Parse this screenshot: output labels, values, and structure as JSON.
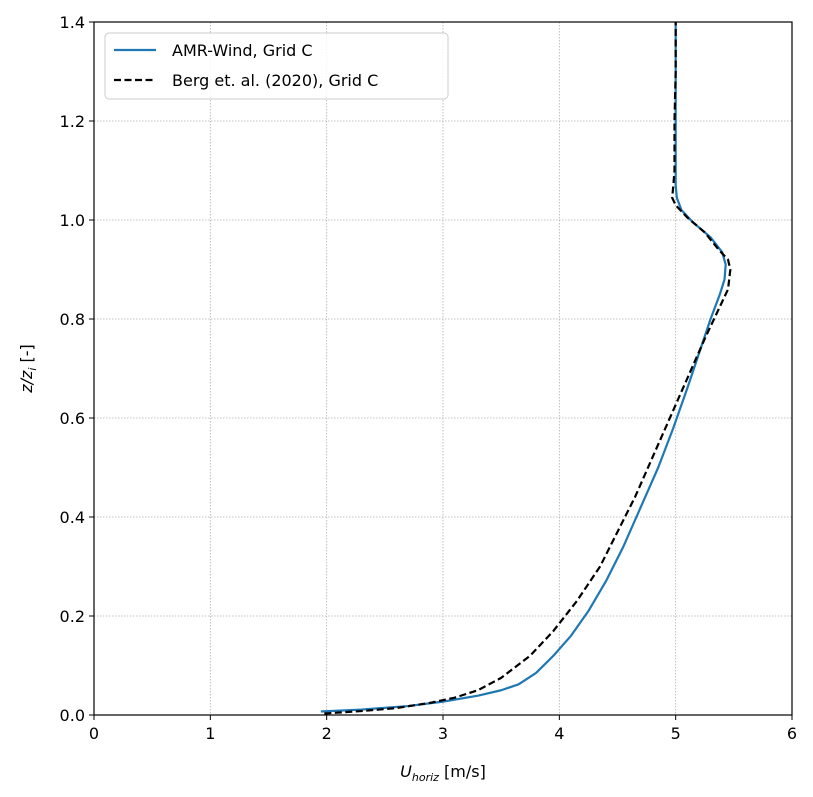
{
  "chart_data": {
    "type": "line",
    "xlabel": {
      "main": "U",
      "sub": "horiz",
      "unit": " [m/s]"
    },
    "ylabel": {
      "main": "z/z",
      "sub": "i",
      "unit": " [-]"
    },
    "xlim": [
      0,
      6
    ],
    "ylim": [
      0,
      1.4
    ],
    "xticks": [
      "0",
      "1",
      "2",
      "3",
      "4",
      "5",
      "6"
    ],
    "yticks": [
      "0.0",
      "0.2",
      "0.4",
      "0.6",
      "0.8",
      "1.0",
      "1.2",
      "1.4"
    ],
    "grid": true,
    "legend_position": "top-left",
    "series": [
      {
        "name": "AMR-Wind, Grid C",
        "color": "#1f77b4",
        "dash": "solid",
        "points": [
          [
            1.95,
            0.007
          ],
          [
            2.3,
            0.011
          ],
          [
            2.7,
            0.018
          ],
          [
            3.0,
            0.027
          ],
          [
            3.3,
            0.039
          ],
          [
            3.5,
            0.05
          ],
          [
            3.65,
            0.062
          ],
          [
            3.8,
            0.085
          ],
          [
            3.95,
            0.12
          ],
          [
            4.1,
            0.16
          ],
          [
            4.25,
            0.21
          ],
          [
            4.4,
            0.27
          ],
          [
            4.55,
            0.34
          ],
          [
            4.7,
            0.42
          ],
          [
            4.85,
            0.5
          ],
          [
            4.98,
            0.58
          ],
          [
            5.1,
            0.66
          ],
          [
            5.2,
            0.73
          ],
          [
            5.3,
            0.8
          ],
          [
            5.38,
            0.85
          ],
          [
            5.42,
            0.88
          ],
          [
            5.43,
            0.91
          ],
          [
            5.4,
            0.935
          ],
          [
            5.3,
            0.965
          ],
          [
            5.15,
            0.995
          ],
          [
            5.05,
            1.02
          ],
          [
            5.01,
            1.045
          ],
          [
            5.0,
            1.07
          ],
          [
            5.0,
            1.1
          ],
          [
            5.0,
            1.2
          ],
          [
            5.0,
            1.3
          ],
          [
            5.0,
            1.4
          ]
        ]
      },
      {
        "name": "Berg et. al. (2020), Grid C",
        "color": "#000000",
        "dash": "dashed",
        "points": [
          [
            1.98,
            0.003
          ],
          [
            2.3,
            0.008
          ],
          [
            2.6,
            0.014
          ],
          [
            2.9,
            0.025
          ],
          [
            3.1,
            0.035
          ],
          [
            3.3,
            0.05
          ],
          [
            3.5,
            0.075
          ],
          [
            3.75,
            0.12
          ],
          [
            3.95,
            0.17
          ],
          [
            4.15,
            0.23
          ],
          [
            4.35,
            0.3
          ],
          [
            4.5,
            0.37
          ],
          [
            4.65,
            0.44
          ],
          [
            4.8,
            0.52
          ],
          [
            4.95,
            0.6
          ],
          [
            5.1,
            0.68
          ],
          [
            5.25,
            0.76
          ],
          [
            5.37,
            0.82
          ],
          [
            5.45,
            0.86
          ],
          [
            5.47,
            0.9
          ],
          [
            5.45,
            0.92
          ],
          [
            5.37,
            0.94
          ],
          [
            5.25,
            0.975
          ],
          [
            5.1,
            1.005
          ],
          [
            5.0,
            1.03
          ],
          [
            4.97,
            1.045
          ],
          [
            4.98,
            1.07
          ],
          [
            4.99,
            1.1
          ],
          [
            4.99,
            1.2
          ],
          [
            5.0,
            1.3
          ],
          [
            5.0,
            1.4
          ]
        ]
      }
    ]
  }
}
